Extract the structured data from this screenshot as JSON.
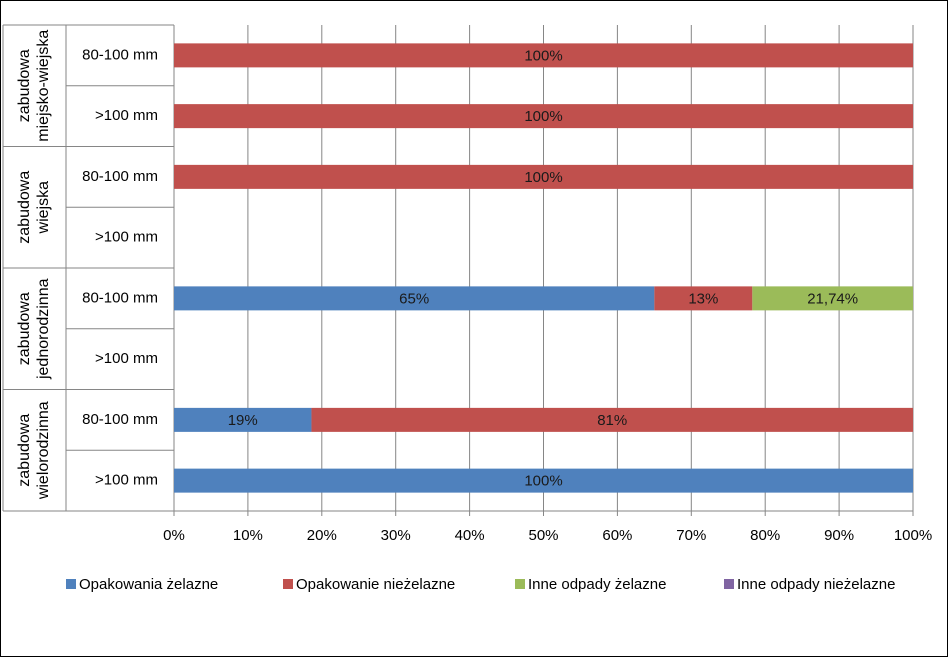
{
  "chart_data": {
    "type": "bar",
    "orientation": "horizontal",
    "stacked": true,
    "groups": [
      {
        "lines": [
          "zabudowa",
          "miejsko-wiejska"
        ]
      },
      {
        "lines": [
          "zabudowa",
          "wiejska"
        ]
      },
      {
        "lines": [
          "zabudowa",
          "jednorodzinna"
        ]
      },
      {
        "lines": [
          "zabudowa",
          "wielorodzinna"
        ]
      }
    ],
    "categories": [
      "80-100 mm",
      ">100 mm",
      "80-100 mm",
      ">100 mm",
      "80-100 mm",
      ">100 mm",
      "80-100 mm",
      ">100 mm"
    ],
    "series": [
      {
        "name": "Opakowania żelazne",
        "color": "#4f81bd",
        "values": [
          null,
          null,
          null,
          null,
          65,
          null,
          18.6,
          100
        ],
        "value_labels": [
          null,
          null,
          null,
          null,
          "65%",
          null,
          "19%",
          "100%"
        ]
      },
      {
        "name": "Opakowanie nieżelazne",
        "color": "#c0504d",
        "values": [
          100,
          100,
          100,
          null,
          13.26,
          null,
          81.4,
          null
        ],
        "value_labels": [
          "100%",
          "100%",
          "100%",
          null,
          "13%",
          null,
          "81%",
          null
        ]
      },
      {
        "name": "Inne odpady żelazne",
        "color": "#9bbb59",
        "values": [
          null,
          null,
          null,
          null,
          21.74,
          null,
          null,
          null
        ],
        "value_labels": [
          null,
          null,
          null,
          null,
          "21,74%",
          null,
          null,
          null
        ]
      },
      {
        "name": "Inne odpady nieżelazne",
        "color": "#8064a2",
        "values": [
          null,
          null,
          null,
          null,
          null,
          null,
          null,
          null
        ],
        "value_labels": [
          null,
          null,
          null,
          null,
          null,
          null,
          null,
          null
        ]
      }
    ],
    "xlim": [
      0,
      100
    ],
    "xticks": [
      {
        "value": 0,
        "label": "0%"
      },
      {
        "value": 10,
        "label": "10%"
      },
      {
        "value": 20,
        "label": "20%"
      },
      {
        "value": 30,
        "label": "30%"
      },
      {
        "value": 40,
        "label": "40%"
      },
      {
        "value": 50,
        "label": "50%"
      },
      {
        "value": 60,
        "label": "60%"
      },
      {
        "value": 70,
        "label": "70%"
      },
      {
        "value": 80,
        "label": "80%"
      },
      {
        "value": 90,
        "label": "90%"
      },
      {
        "value": 100,
        "label": "100%"
      }
    ],
    "grid": true,
    "legend": "bottom"
  }
}
